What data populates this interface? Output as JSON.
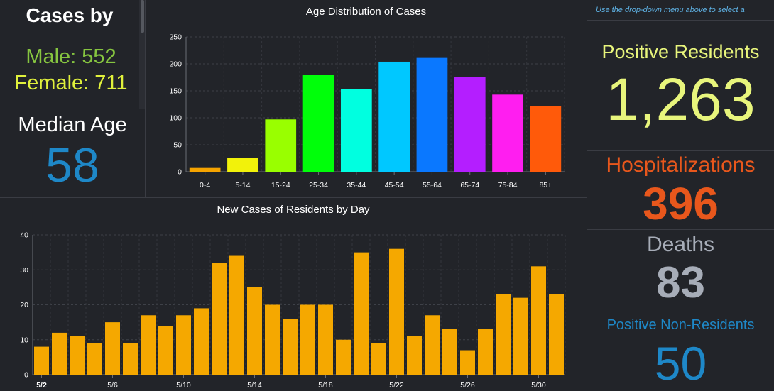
{
  "gender": {
    "title": "Cases by",
    "male": "Male: 552",
    "female": "Female: 711"
  },
  "median_age": {
    "label": "Median Age",
    "value": "58"
  },
  "right": {
    "hint": "Use the drop-down menu above to select a",
    "positive_residents": {
      "label": "Positive Residents",
      "value": "1,263"
    },
    "hospitalizations": {
      "label": "Hospitalizations",
      "value": "396"
    },
    "deaths": {
      "label": "Deaths",
      "value": "83"
    },
    "non_residents": {
      "label": "Positive Non-Residents",
      "value": "50"
    }
  },
  "colors": {
    "male": "#86c540",
    "female": "#e0f03c",
    "median": "#1e88c8",
    "positive": "#e8f57c",
    "hospitalizations": "#e8571c",
    "deaths": "#a7adb8",
    "non_residents": "#1e88c8",
    "daily_bars": "#f5a800"
  },
  "chart_data": [
    {
      "type": "bar",
      "title": "Age Distribution of Cases",
      "categories": [
        "0-4",
        "5-14",
        "15-24",
        "25-34",
        "35-44",
        "45-54",
        "55-64",
        "65-74",
        "75-84",
        "85+"
      ],
      "values": [
        7,
        26,
        97,
        180,
        153,
        204,
        211,
        176,
        143,
        122
      ],
      "colors": [
        "#f5a300",
        "#f2f20a",
        "#99ff00",
        "#00ff0a",
        "#00ffe0",
        "#00c8ff",
        "#0a78ff",
        "#b41eff",
        "#ff1ef0",
        "#ff5a0a"
      ],
      "ylim": [
        0,
        250
      ],
      "yticks": [
        0,
        50,
        100,
        150,
        200,
        250
      ],
      "grid": true
    },
    {
      "type": "bar",
      "title": "New Cases of Residents by Day",
      "categories": [
        "5/2",
        "5/3",
        "5/4",
        "5/5",
        "5/6",
        "5/7",
        "5/8",
        "5/9",
        "5/10",
        "5/11",
        "5/12",
        "5/13",
        "5/14",
        "5/15",
        "5/16",
        "5/17",
        "5/18",
        "5/19",
        "5/20",
        "5/21",
        "5/22",
        "5/23",
        "5/24",
        "5/25",
        "5/26",
        "5/27",
        "5/28",
        "5/29",
        "5/30",
        "5/31"
      ],
      "tick_labels": [
        "5/2",
        "5/6",
        "5/10",
        "5/14",
        "5/18",
        "5/22",
        "5/26",
        "5/30"
      ],
      "values": [
        8,
        12,
        11,
        9,
        15,
        9,
        17,
        14,
        17,
        19,
        32,
        34,
        25,
        20,
        16,
        20,
        20,
        10,
        35,
        9,
        36,
        11,
        17,
        13,
        7,
        13,
        23,
        22,
        31,
        23
      ],
      "ylim": [
        0,
        40
      ],
      "yticks": [
        0,
        10,
        20,
        30,
        40
      ],
      "grid": true
    }
  ]
}
